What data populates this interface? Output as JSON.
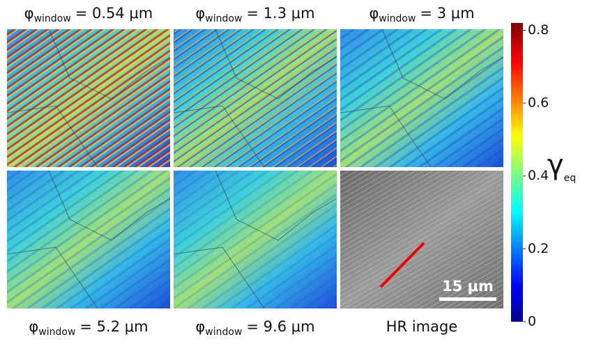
{
  "panels": [
    {
      "symbol": "φ",
      "subscript": "window",
      "value": "= 0.54 μm"
    },
    {
      "symbol": "φ",
      "subscript": "window",
      "value": "= 1.3 μm"
    },
    {
      "symbol": "φ",
      "subscript": "window",
      "value": "= 3 μm"
    },
    {
      "symbol": "φ",
      "subscript": "window",
      "value": "= 5.2 μm"
    },
    {
      "symbol": "φ",
      "subscript": "window",
      "value": "= 9.6 μm"
    },
    {
      "title": "HR image"
    }
  ],
  "scale_bar": "15 μm",
  "colorbar": {
    "symbol": "γ",
    "subscript": "eq",
    "lim": [
      0,
      0.82
    ],
    "ticks": [
      0,
      0.2,
      0.4,
      0.6,
      0.8
    ]
  }
}
